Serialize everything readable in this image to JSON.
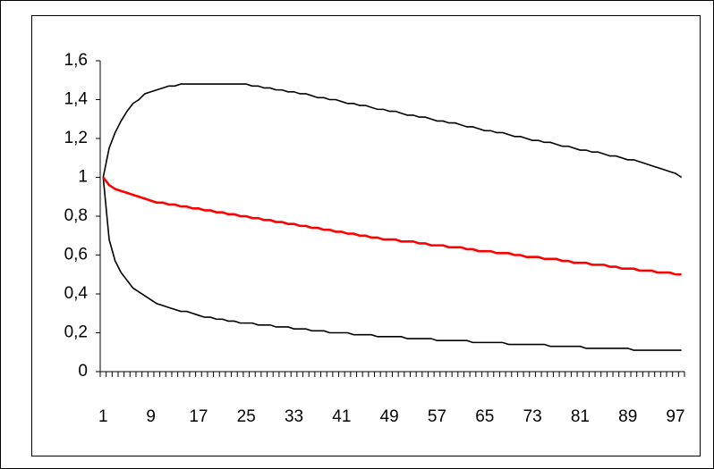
{
  "chart_data": {
    "type": "line",
    "categories": [
      1,
      null,
      null,
      null,
      null,
      null,
      null,
      null,
      9,
      null,
      null,
      null,
      null,
      null,
      null,
      null,
      17,
      null,
      null,
      null,
      null,
      null,
      null,
      null,
      25,
      null,
      null,
      null,
      null,
      null,
      null,
      null,
      33,
      null,
      null,
      null,
      null,
      null,
      null,
      null,
      41,
      null,
      null,
      null,
      null,
      null,
      null,
      null,
      49,
      null,
      null,
      null,
      null,
      null,
      null,
      null,
      57,
      null,
      null,
      null,
      null,
      null,
      null,
      null,
      65,
      null,
      null,
      null,
      null,
      null,
      null,
      null,
      73,
      null,
      null,
      null,
      null,
      null,
      null,
      null,
      81,
      null,
      null,
      null,
      null,
      null,
      null,
      null,
      89,
      null,
      null,
      null,
      null,
      null,
      null,
      null,
      97,
      null
    ],
    "series": [
      {
        "color": "#000000",
        "values": [
          1.0,
          1.15,
          1.23,
          1.29,
          1.34,
          1.38,
          1.4,
          1.43,
          1.44,
          1.45,
          1.46,
          1.47,
          1.47,
          1.48,
          1.48,
          1.48,
          1.48,
          1.48,
          1.48,
          1.48,
          1.48,
          1.48,
          1.48,
          1.48,
          1.48,
          1.47,
          1.47,
          1.46,
          1.46,
          1.45,
          1.45,
          1.44,
          1.44,
          1.43,
          1.43,
          1.42,
          1.41,
          1.41,
          1.4,
          1.4,
          1.39,
          1.38,
          1.38,
          1.37,
          1.37,
          1.36,
          1.35,
          1.35,
          1.34,
          1.34,
          1.33,
          1.32,
          1.32,
          1.31,
          1.31,
          1.3,
          1.29,
          1.29,
          1.28,
          1.28,
          1.27,
          1.26,
          1.26,
          1.25,
          1.24,
          1.24,
          1.23,
          1.23,
          1.22,
          1.21,
          1.21,
          1.2,
          1.19,
          1.19,
          1.18,
          1.18,
          1.17,
          1.16,
          1.16,
          1.15,
          1.14,
          1.14,
          1.13,
          1.13,
          1.12,
          1.11,
          1.11,
          1.1,
          1.09,
          1.09,
          1.08,
          1.07,
          1.06,
          1.05,
          1.04,
          1.03,
          1.02,
          1.0
        ]
      },
      {
        "color": "#000000",
        "values": [
          1.0,
          0.68,
          0.57,
          0.51,
          0.47,
          0.43,
          0.41,
          0.39,
          0.37,
          0.35,
          0.34,
          0.33,
          0.32,
          0.31,
          0.31,
          0.3,
          0.29,
          0.28,
          0.28,
          0.27,
          0.27,
          0.26,
          0.26,
          0.25,
          0.25,
          0.25,
          0.24,
          0.24,
          0.24,
          0.23,
          0.23,
          0.23,
          0.22,
          0.22,
          0.22,
          0.21,
          0.21,
          0.21,
          0.2,
          0.2,
          0.2,
          0.2,
          0.19,
          0.19,
          0.19,
          0.19,
          0.18,
          0.18,
          0.18,
          0.18,
          0.18,
          0.17,
          0.17,
          0.17,
          0.17,
          0.17,
          0.16,
          0.16,
          0.16,
          0.16,
          0.16,
          0.16,
          0.15,
          0.15,
          0.15,
          0.15,
          0.15,
          0.15,
          0.14,
          0.14,
          0.14,
          0.14,
          0.14,
          0.14,
          0.14,
          0.13,
          0.13,
          0.13,
          0.13,
          0.13,
          0.13,
          0.12,
          0.12,
          0.12,
          0.12,
          0.12,
          0.12,
          0.12,
          0.12,
          0.11,
          0.11,
          0.11,
          0.11,
          0.11,
          0.11,
          0.11,
          0.11,
          0.11
        ]
      },
      {
        "color": "#ff0000",
        "values": [
          1.0,
          0.96,
          0.94,
          0.93,
          0.92,
          0.91,
          0.9,
          0.89,
          0.88,
          0.87,
          0.87,
          0.86,
          0.86,
          0.85,
          0.85,
          0.84,
          0.84,
          0.83,
          0.83,
          0.82,
          0.82,
          0.81,
          0.81,
          0.8,
          0.8,
          0.79,
          0.79,
          0.78,
          0.78,
          0.77,
          0.77,
          0.76,
          0.76,
          0.75,
          0.75,
          0.74,
          0.74,
          0.73,
          0.73,
          0.72,
          0.72,
          0.71,
          0.71,
          0.7,
          0.7,
          0.69,
          0.69,
          0.68,
          0.68,
          0.68,
          0.67,
          0.67,
          0.67,
          0.66,
          0.66,
          0.65,
          0.65,
          0.65,
          0.64,
          0.64,
          0.64,
          0.63,
          0.63,
          0.62,
          0.62,
          0.62,
          0.61,
          0.61,
          0.61,
          0.6,
          0.6,
          0.59,
          0.59,
          0.59,
          0.58,
          0.58,
          0.58,
          0.57,
          0.57,
          0.56,
          0.56,
          0.56,
          0.55,
          0.55,
          0.55,
          0.54,
          0.54,
          0.53,
          0.53,
          0.53,
          0.52,
          0.52,
          0.52,
          0.51,
          0.51,
          0.51,
          0.5,
          0.5
        ]
      }
    ],
    "ylim": [
      0,
      1.6
    ],
    "yticks": [
      0,
      {
        "value": 0.2,
        "label": "0,2"
      },
      {
        "value": 0.4,
        "label": "0,4"
      },
      {
        "value": 0.6,
        "label": "0,6"
      },
      {
        "value": 0.8,
        "label": "0,8"
      },
      1,
      {
        "value": 1.2,
        "label": "1,2"
      },
      {
        "value": 1.4,
        "label": "1,4"
      },
      {
        "value": 1.6,
        "label": "1,6"
      }
    ]
  }
}
